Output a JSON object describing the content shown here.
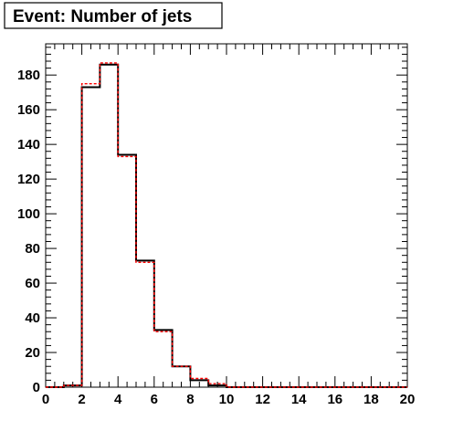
{
  "chart_data": {
    "type": "bar",
    "style": "step-histogram",
    "title": "Event: Number of jets",
    "xlabel": "",
    "ylabel": "",
    "xlim": [
      0,
      20
    ],
    "ylim": [
      0,
      198
    ],
    "bin_edges": [
      0,
      1,
      2,
      3,
      4,
      5,
      6,
      7,
      8,
      9,
      10,
      11,
      12,
      13,
      14,
      15,
      16,
      17,
      18,
      19,
      20
    ],
    "x_ticks": [
      0,
      2,
      4,
      6,
      8,
      10,
      12,
      14,
      16,
      18,
      20
    ],
    "y_ticks": [
      0,
      20,
      40,
      60,
      80,
      100,
      120,
      140,
      160,
      180
    ],
    "grid": false,
    "legend": "none",
    "series": [
      {
        "color": "#000000",
        "line": "solid",
        "values": [
          0,
          1,
          173,
          186,
          134,
          73,
          33,
          12,
          4,
          1,
          0,
          0,
          0,
          0,
          0,
          0,
          0,
          0,
          0,
          0
        ]
      },
      {
        "color": "#ff0000",
        "line": "dashed",
        "values": [
          0,
          1,
          175,
          187,
          133,
          72,
          32,
          12,
          5,
          2,
          0,
          0,
          0,
          0,
          0,
          0,
          0,
          0,
          0,
          0
        ]
      }
    ]
  }
}
